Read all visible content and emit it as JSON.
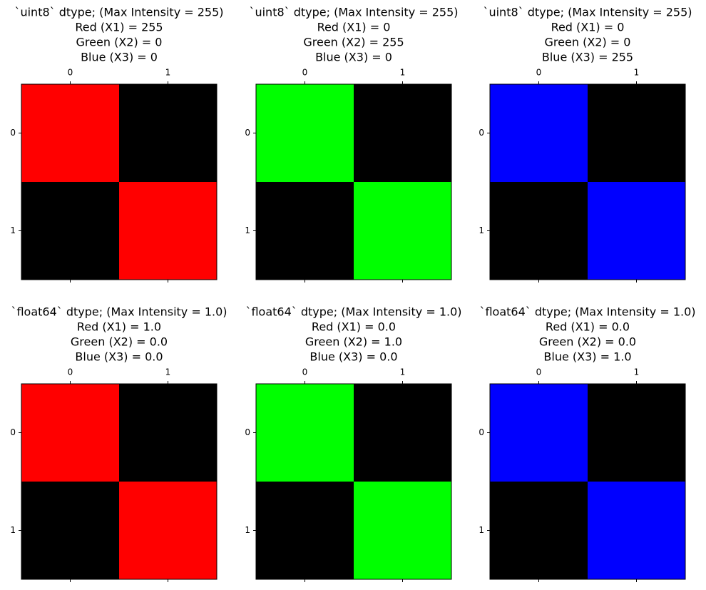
{
  "chart_data": [
    {
      "type": "image",
      "title": [
        "`uint8` dtype; (Max Intensity = 255)",
        "Red (X1) = 255",
        "Green (X2) = 0",
        "Blue (X3) = 0"
      ],
      "values": [
        [
          [
            255,
            0,
            0
          ],
          [
            0,
            0,
            0
          ]
        ],
        [
          [
            0,
            0,
            0
          ],
          [
            255,
            0,
            0
          ]
        ]
      ],
      "xlim": [
        -0.5,
        1.5
      ],
      "ylim": [
        1.5,
        -0.5
      ],
      "xticks": [
        0,
        1
      ],
      "yticks": [
        0,
        1
      ]
    },
    {
      "type": "image",
      "title": [
        "`uint8` dtype; (Max Intensity = 255)",
        "Red (X1) = 0",
        "Green (X2) = 255",
        "Blue (X3) = 0"
      ],
      "values": [
        [
          [
            0,
            255,
            0
          ],
          [
            0,
            0,
            0
          ]
        ],
        [
          [
            0,
            0,
            0
          ],
          [
            0,
            255,
            0
          ]
        ]
      ],
      "xlim": [
        -0.5,
        1.5
      ],
      "ylim": [
        1.5,
        -0.5
      ],
      "xticks": [
        0,
        1
      ],
      "yticks": [
        0,
        1
      ]
    },
    {
      "type": "image",
      "title": [
        "`uint8` dtype; (Max Intensity = 255)",
        "Red (X1) = 0",
        "Green (X2) = 0",
        "Blue (X3) = 255"
      ],
      "values": [
        [
          [
            0,
            0,
            255
          ],
          [
            0,
            0,
            0
          ]
        ],
        [
          [
            0,
            0,
            0
          ],
          [
            0,
            0,
            255
          ]
        ]
      ],
      "xlim": [
        -0.5,
        1.5
      ],
      "ylim": [
        1.5,
        -0.5
      ],
      "xticks": [
        0,
        1
      ],
      "yticks": [
        0,
        1
      ]
    },
    {
      "type": "image",
      "title": [
        "`float64` dtype; (Max Intensity = 1.0)",
        "Red (X1) = 1.0",
        "Green (X2) = 0.0",
        "Blue (X3) = 0.0"
      ],
      "values": [
        [
          [
            1,
            0,
            0
          ],
          [
            0,
            0,
            0
          ]
        ],
        [
          [
            0,
            0,
            0
          ],
          [
            1,
            0,
            0
          ]
        ]
      ],
      "xlim": [
        -0.5,
        1.5
      ],
      "ylim": [
        1.5,
        -0.5
      ],
      "xticks": [
        0,
        1
      ],
      "yticks": [
        0,
        1
      ]
    },
    {
      "type": "image",
      "title": [
        "`float64` dtype; (Max Intensity = 1.0)",
        "Red (X1) = 0.0",
        "Green (X2) = 1.0",
        "Blue (X3) = 0.0"
      ],
      "values": [
        [
          [
            0,
            1,
            0
          ],
          [
            0,
            0,
            0
          ]
        ],
        [
          [
            0,
            0,
            0
          ],
          [
            0,
            1,
            0
          ]
        ]
      ],
      "xlim": [
        -0.5,
        1.5
      ],
      "ylim": [
        1.5,
        -0.5
      ],
      "xticks": [
        0,
        1
      ],
      "yticks": [
        0,
        1
      ]
    },
    {
      "type": "image",
      "title": [
        "`float64` dtype; (Max Intensity = 1.0)",
        "Red (X1) = 0.0",
        "Green (X2) = 0.0",
        "Blue (X3) = 1.0"
      ],
      "values": [
        [
          [
            0,
            0,
            1
          ],
          [
            0,
            0,
            0
          ]
        ],
        [
          [
            0,
            0,
            0
          ],
          [
            0,
            0,
            1
          ]
        ]
      ],
      "xlim": [
        -0.5,
        1.5
      ],
      "ylim": [
        1.5,
        -0.5
      ],
      "xticks": [
        0,
        1
      ],
      "yticks": [
        0,
        1
      ]
    }
  ]
}
